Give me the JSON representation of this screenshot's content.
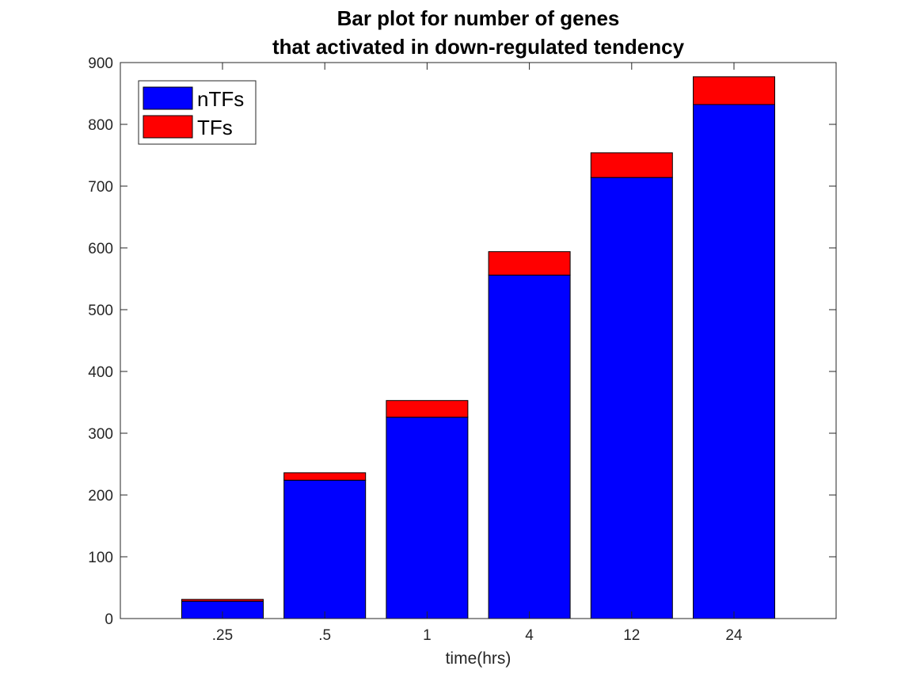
{
  "chart_data": {
    "type": "bar",
    "stacked": true,
    "title": [
      "Bar plot for number of genes",
      "that activated in down-regulated tendency"
    ],
    "xlabel": "time(hrs)",
    "ylabel": "",
    "categories": [
      ".25",
      ".5",
      "1",
      "4",
      "12",
      "24"
    ],
    "ylim": [
      0,
      900
    ],
    "yticks": [
      0,
      100,
      200,
      300,
      400,
      500,
      600,
      700,
      800,
      900
    ],
    "series": [
      {
        "name": "nTFs",
        "color": "#0000ff",
        "values": [
          28,
          224,
          326,
          556,
          714,
          832
        ]
      },
      {
        "name": "TFs",
        "color": "#ff0000",
        "values": [
          3,
          12,
          27,
          38,
          40,
          45
        ]
      }
    ],
    "legend_position": "top-left",
    "grid": false
  }
}
